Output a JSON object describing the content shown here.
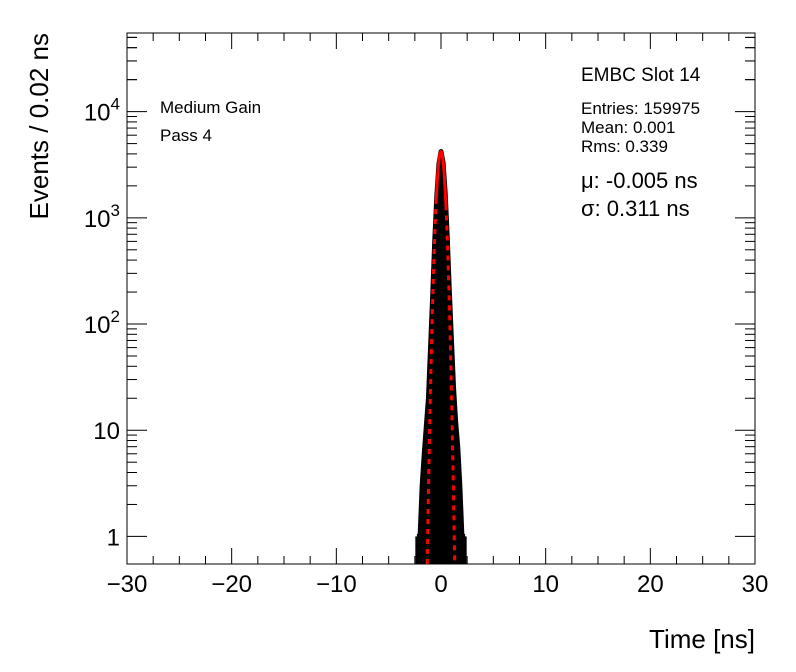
{
  "chart_data": {
    "type": "histogram",
    "xlabel": "Time [ns]",
    "ylabel": "Events / 0.02 ns",
    "xlim": [
      -30,
      30
    ],
    "ylim": [
      0.55,
      55000
    ],
    "y_scale": "log",
    "x_ticks": [
      -30,
      -20,
      -10,
      0,
      10,
      20,
      30
    ],
    "x_tick_labels": [
      "−30",
      "−20",
      "−10",
      "0",
      "10",
      "20",
      "30"
    ],
    "y_ticks": [
      {
        "value": 1,
        "base": "1",
        "exp": ""
      },
      {
        "value": 10,
        "base": "10",
        "exp": ""
      },
      {
        "value": 100,
        "base": "10",
        "exp": "2"
      },
      {
        "value": 1000,
        "base": "10",
        "exp": "3"
      },
      {
        "value": 10000,
        "base": "10",
        "exp": "4"
      }
    ],
    "grid": false,
    "annotations": {
      "left_lines": [
        "Medium Gain",
        "Pass 4"
      ],
      "title": "EMBC Slot 14",
      "stats": [
        "Entries: 159975",
        "Mean: 0.001",
        "Rms: 0.339"
      ],
      "fit": [
        "μ: -0.005 ns",
        "σ: 0.311 ns"
      ]
    },
    "series": [
      {
        "style": "histogram",
        "color": "#000000",
        "bin_width": 0.02,
        "x": [
          -2.3,
          -2.0,
          -1.8,
          -1.6,
          -1.4,
          -1.2,
          -1.0,
          -0.8,
          -0.6,
          -0.4,
          -0.2,
          0.0,
          0.2,
          0.4,
          0.6,
          0.8,
          1.0,
          1.2,
          1.4,
          1.6,
          1.8,
          2.0,
          2.3
        ],
        "y": [
          1,
          1,
          3,
          6,
          11,
          20,
          60,
          180,
          600,
          1600,
          3200,
          4200,
          3300,
          1700,
          650,
          200,
          70,
          25,
          12,
          7,
          3,
          1,
          1
        ]
      },
      {
        "style": "fit",
        "color": "#ff0000",
        "function": "gaussian",
        "mean": -0.005,
        "sigma": 0.311,
        "amplitude": 4200,
        "solid_range": [
          -0.47,
          0.47
        ]
      }
    ]
  }
}
